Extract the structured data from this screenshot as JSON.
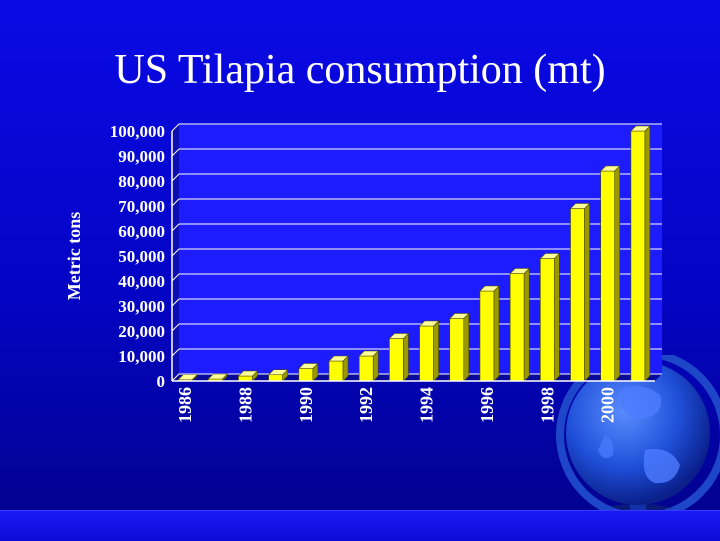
{
  "slide": {
    "title": "US Tilapia consumption (mt)"
  },
  "colors": {
    "background": "#0606d0",
    "bar_face": "#ffff00",
    "bar_side": "#9a9a00",
    "plot_bg": "#1c1cff",
    "grid": "#ffffff",
    "text": "#ffffff"
  },
  "chart_data": {
    "type": "bar",
    "title": "US Tilapia consumption (mt)",
    "ylabel": "Metric tons",
    "xlabel": "",
    "categories": [
      "1986",
      "1987",
      "1988",
      "1989",
      "1990",
      "1991",
      "1992",
      "1993",
      "1994",
      "1995",
      "1996",
      "1997",
      "1998",
      "1999",
      "2000",
      "2001"
    ],
    "x_tick_labels": [
      "1986",
      "1988",
      "1990",
      "1992",
      "1994",
      "1996",
      "1998",
      "2000"
    ],
    "values": [
      500,
      800,
      2000,
      2500,
      5000,
      8000,
      10000,
      17000,
      22000,
      25000,
      36000,
      43000,
      49000,
      69000,
      84000,
      100000
    ],
    "ylim": [
      0,
      100000
    ],
    "y_ticks": [
      0,
      10000,
      20000,
      30000,
      40000,
      50000,
      60000,
      70000,
      80000,
      90000,
      100000
    ],
    "y_tick_labels": [
      "0",
      "10,000",
      "20,000",
      "30,000",
      "40,000",
      "50,000",
      "60,000",
      "70,000",
      "80,000",
      "90,000",
      "100,000"
    ],
    "grid": true,
    "legend": false,
    "style": "3d-bar"
  }
}
